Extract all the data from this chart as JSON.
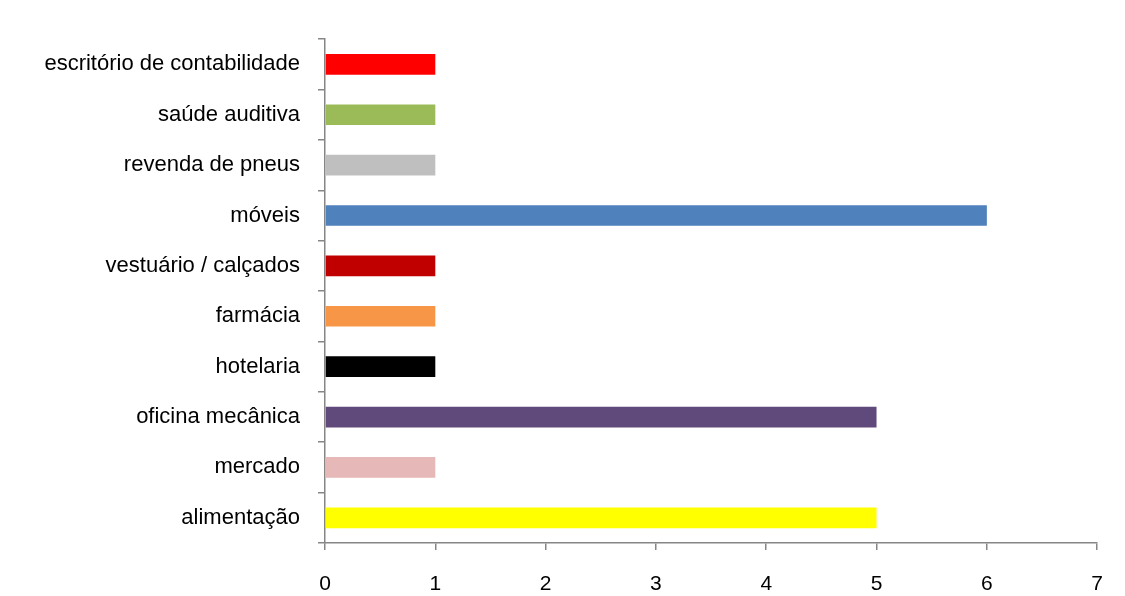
{
  "chart_data": {
    "type": "bar",
    "orientation": "horizontal",
    "categories": [
      "escritório de contabilidade",
      "saúde auditiva",
      "revenda de pneus",
      "móveis",
      "vestuário / calçados",
      "farmácia",
      "hotelaria",
      "oficina mecânica",
      "mercado",
      "alimentação"
    ],
    "values": [
      1,
      1,
      1,
      6,
      1,
      1,
      1,
      5,
      1,
      5
    ],
    "colors": [
      "#ff0000",
      "#9bbb59",
      "#bfbfbf",
      "#4f81bd",
      "#c00000",
      "#f79646",
      "#000000",
      "#604a7b",
      "#e6b9b8",
      "#ffff00"
    ],
    "xlim": [
      0,
      7
    ],
    "xticks": [
      0,
      1,
      2,
      3,
      4,
      5,
      6,
      7
    ]
  }
}
